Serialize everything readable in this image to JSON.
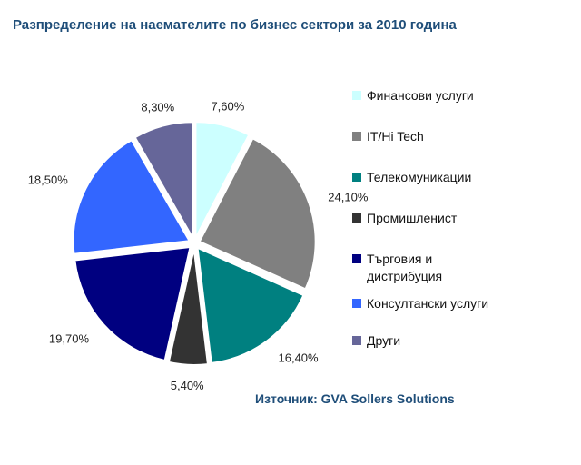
{
  "title": "Разпределение на наемателите по бизнес сектори за 2010 година",
  "source": "Източник: GVA Sollers Solutions",
  "chart_data": {
    "type": "pie",
    "title": "Разпределение на наемателите по бизнес сектори за 2010 година",
    "legend_position": "right",
    "slices": [
      {
        "name": "Финансови услуги",
        "value": 7.6,
        "label": "7,60%",
        "color": "#ccffff"
      },
      {
        "name": "IT/Hi Tech",
        "value": 24.1,
        "label": "24,10%",
        "color": "#808080"
      },
      {
        "name": "Телекомуникации",
        "value": 16.4,
        "label": "16,40%",
        "color": "#008080"
      },
      {
        "name": "Промишленист",
        "value": 5.4,
        "label": "5,40%",
        "color": "#333333"
      },
      {
        "name": "Търговия и дистрибуция",
        "value": 19.7,
        "label": "19,70%",
        "color": "#000080"
      },
      {
        "name": "Консултански услуги",
        "value": 18.5,
        "label": "18,50%",
        "color": "#3366ff"
      },
      {
        "name": "Други",
        "value": 8.3,
        "label": "8,30%",
        "color": "#666699"
      }
    ]
  }
}
